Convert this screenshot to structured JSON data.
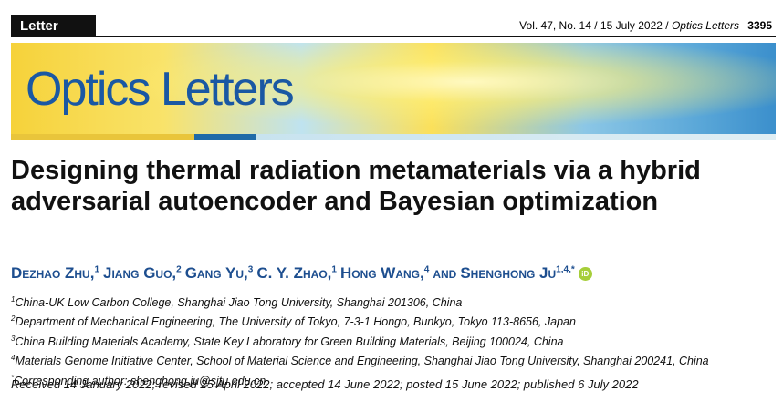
{
  "header": {
    "section": "Letter",
    "volume": "Vol. 47, No. 14 / 15 July 2022 /",
    "journal": "Optics Letters",
    "page": "3395"
  },
  "banner": {
    "journal": "Optics Letters"
  },
  "title": "Designing thermal radiation metamaterials via a hybrid adversarial autoencoder and Bayesian optimization",
  "authors": [
    {
      "name": "Dezhao Zhu,",
      "mark": "1"
    },
    {
      "name": "Jiang Guo,",
      "mark": "2"
    },
    {
      "name": "Gang Yu,",
      "mark": "3"
    },
    {
      "name": "C. Y. Zhao,",
      "mark": "1"
    },
    {
      "name": "Hong Wang,",
      "mark": "4"
    },
    {
      "name": "and",
      "mark": ""
    },
    {
      "name": "Shenghong Ju",
      "mark": "1,4,*"
    }
  ],
  "orcid": "iD",
  "affiliations": [
    {
      "mark": "1",
      "text": "China-UK Low Carbon College, Shanghai Jiao Tong University, Shanghai 201306, China"
    },
    {
      "mark": "2",
      "text": "Department of Mechanical Engineering, The University of Tokyo, 7-3-1 Hongo, Bunkyo, Tokyo 113-8656, Japan"
    },
    {
      "mark": "3",
      "text": "China Building Materials Academy, State Key Laboratory for Green Building Materials, Beijing 100024, China"
    },
    {
      "mark": "4",
      "text": "Materials Genome Initiative Center, School of Material Science and Engineering, Shanghai Jiao Tong University, Shanghai 200241, China"
    },
    {
      "mark": "*",
      "text": "Corresponding author: shenghong.ju@sjtu.edu.cn"
    }
  ],
  "dates": "Received 14 January 2022; revised 25 April 2022; accepted 14 June 2022; posted 15 June 2022; published 6 July 2022"
}
